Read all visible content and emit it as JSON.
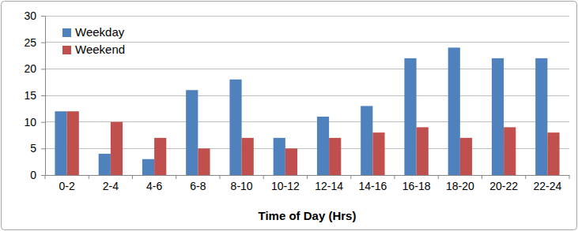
{
  "chart_data": {
    "type": "bar",
    "x_label": "Time of Day (Hrs)",
    "categories": [
      "0-2",
      "2-4",
      "4-6",
      "6-8",
      "8-10",
      "10-12",
      "12-14",
      "14-16",
      "16-18",
      "18-20",
      "20-22",
      "22-24"
    ],
    "series": [
      {
        "name": "Weekday",
        "color": "#4f81bd",
        "values": [
          12,
          4,
          3,
          16,
          18,
          7,
          11,
          13,
          22,
          24,
          22,
          22
        ]
      },
      {
        "name": "Weekend",
        "color": "#c0504d",
        "values": [
          12,
          10,
          7,
          5,
          7,
          5,
          7,
          8,
          9,
          7,
          9,
          8
        ]
      }
    ],
    "ylim": [
      0,
      30
    ],
    "yticks": [
      0,
      5,
      10,
      15,
      20,
      25,
      30
    ],
    "grid": true,
    "legend": "top-left"
  }
}
